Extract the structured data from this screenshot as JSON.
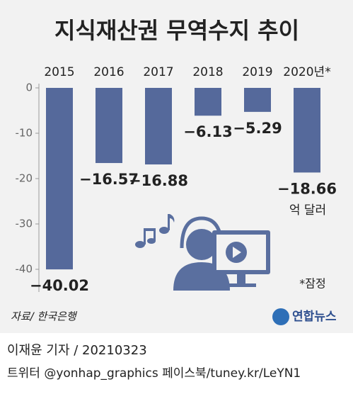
{
  "chart_data": {
    "type": "bar",
    "title": "지식재산권 무역수지 추이",
    "categories": [
      "2015",
      "2016",
      "2017",
      "2018",
      "2019",
      "2020년*"
    ],
    "values": [
      -40.02,
      -16.57,
      -16.88,
      -6.13,
      -5.29,
      -18.66
    ],
    "value_labels": [
      "−40.02",
      "−16.57",
      "−16.88",
      "−6.13",
      "−5.29",
      "−18.66"
    ],
    "color": "#55699b",
    "ylim": [
      -45,
      0
    ],
    "yticks": [
      0,
      -10,
      -20,
      -30,
      -40
    ],
    "unit": "억 달러",
    "note": "*잠정",
    "source": "자료/ 한국은행",
    "logo": "연합뉴스",
    "credit": "이재윤 기자 / 20210323",
    "social": "트위터 @yonhap_graphics 페이스북/tuney.kr/LeYN1"
  }
}
